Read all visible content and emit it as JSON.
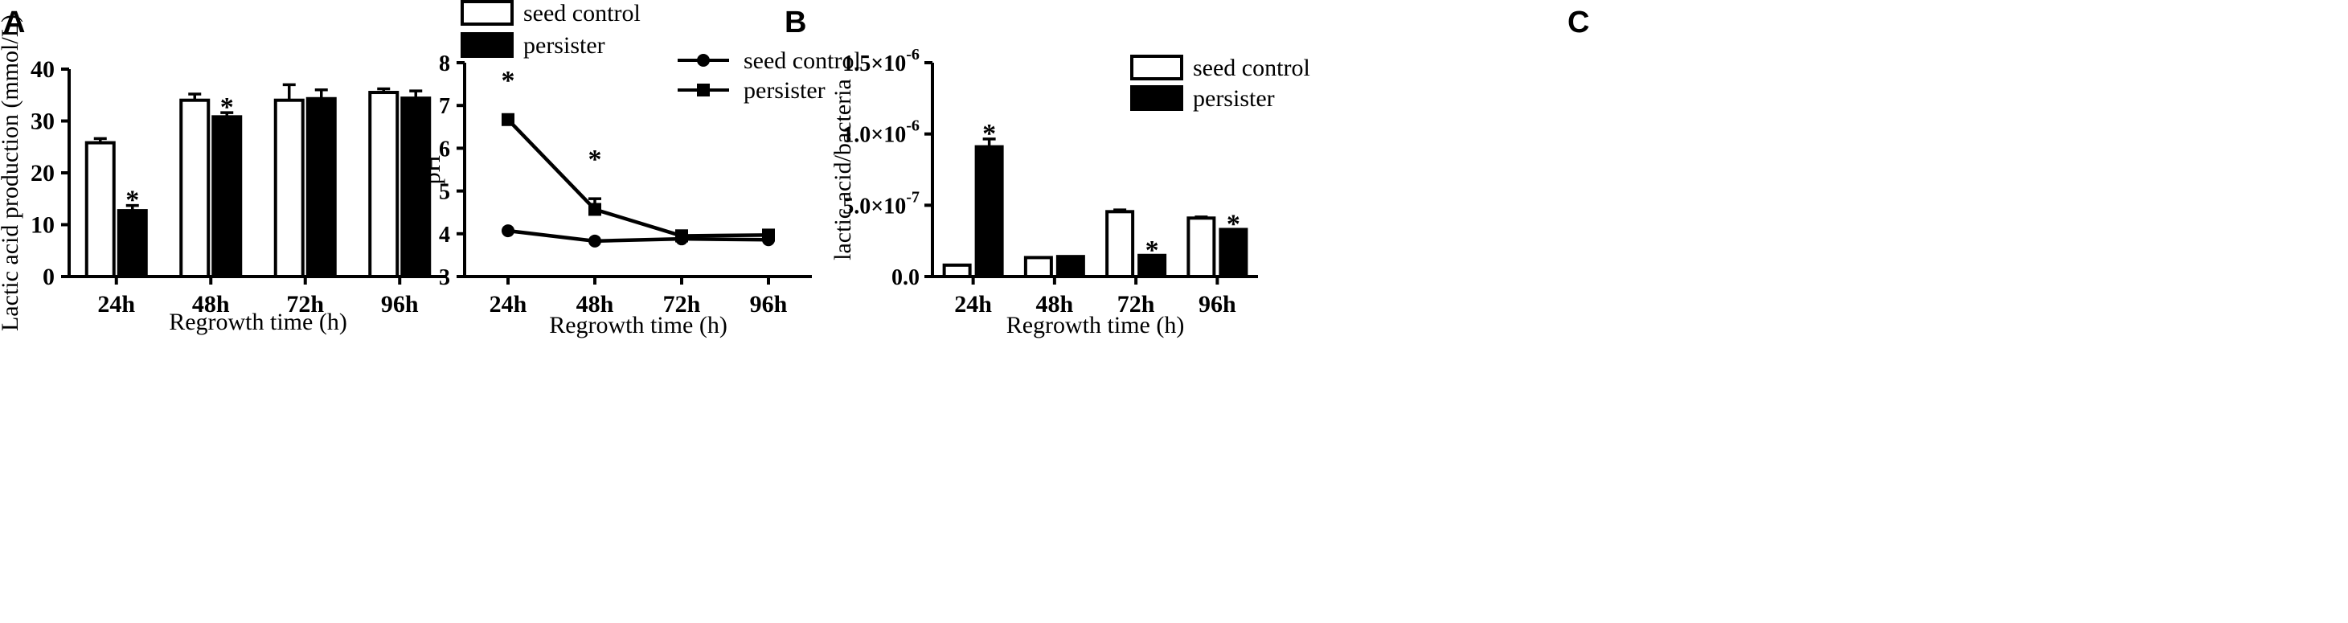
{
  "panels": {
    "a": {
      "letter": "A"
    },
    "b": {
      "letter": "B"
    },
    "c": {
      "letter": "C"
    }
  },
  "colors": {
    "ink": "#000000",
    "paper": "#ffffff"
  },
  "chart_data": [
    {
      "id": "a",
      "type": "bar",
      "title": "",
      "xlabel": "Regrowth time (h)",
      "ylabel": "Lactic acid production (mmol/L)",
      "ylim": [
        0,
        40
      ],
      "yticks": [
        "0",
        "10",
        "20",
        "30",
        "40"
      ],
      "categories": [
        "24h",
        "48h",
        "72h",
        "96h"
      ],
      "series": [
        {
          "name": "seed control",
          "fill": "#ffffff",
          "values": [
            25.8,
            34.0,
            34.0,
            35.5
          ],
          "errors": [
            0.8,
            1.2,
            3.0,
            0.7
          ],
          "significant": [
            false,
            false,
            false,
            false
          ]
        },
        {
          "name": "persister",
          "fill": "#000000",
          "values": [
            12.7,
            30.8,
            34.3,
            34.4
          ],
          "errors": [
            1.0,
            0.8,
            1.7,
            1.4
          ],
          "significant": [
            true,
            true,
            false,
            false
          ]
        }
      ],
      "significance_mark": "*",
      "legend_position": "top-right"
    },
    {
      "id": "b",
      "type": "line",
      "title": "",
      "xlabel": "Regrowth time (h)",
      "ylabel": "pH",
      "ylim": [
        3,
        8
      ],
      "yticks": [
        "3",
        "4",
        "5",
        "6",
        "7",
        "8"
      ],
      "categories": [
        "24h",
        "48h",
        "72h",
        "96h"
      ],
      "series": [
        {
          "name": "seed control",
          "marker": "circle",
          "values": [
            4.07,
            3.83,
            3.88,
            3.86
          ],
          "errors": [
            0,
            0,
            0,
            0
          ],
          "significant": [
            false,
            false,
            false,
            false
          ]
        },
        {
          "name": "persister",
          "marker": "square",
          "values": [
            6.67,
            4.57,
            3.95,
            3.97
          ],
          "errors": [
            0,
            0.25,
            0.12,
            0
          ],
          "significant": [
            true,
            true,
            false,
            false
          ]
        }
      ],
      "significance_mark": "*",
      "legend_position": "top-right"
    },
    {
      "id": "c",
      "type": "bar",
      "title": "",
      "xlabel": "Regrowth time (h)",
      "ylabel": "lactic acid/bacteria",
      "ylim": [
        0,
        1.5e-06
      ],
      "yticks": [
        {
          "value": 0,
          "mantissa": "0.0",
          "exponent": ""
        },
        {
          "value": 5e-07,
          "mantissa": "5.0×10",
          "exponent": "-7"
        },
        {
          "value": 1e-06,
          "mantissa": "1.0×10",
          "exponent": "-6"
        },
        {
          "value": 1.5e-06,
          "mantissa": "1.5×10",
          "exponent": "-6"
        }
      ],
      "categories": [
        "24h",
        "48h",
        "72h",
        "96h"
      ],
      "series": [
        {
          "name": "seed control",
          "fill": "#ffffff",
          "values": [
            8e-08,
            1.33e-07,
            4.55e-07,
            4.1e-07
          ],
          "errors": [
            0,
            0,
            1.2e-08,
            8e-09
          ],
          "significant": [
            false,
            false,
            false,
            false
          ]
        },
        {
          "name": "persister",
          "fill": "#000000",
          "values": [
            9.1e-07,
            1.4e-07,
            1.48e-07,
            3.3e-07
          ],
          "errors": [
            5.5e-08,
            0,
            0,
            0
          ],
          "significant": [
            true,
            false,
            true,
            true
          ]
        }
      ],
      "significance_mark": "*",
      "legend_position": "top-right"
    }
  ]
}
